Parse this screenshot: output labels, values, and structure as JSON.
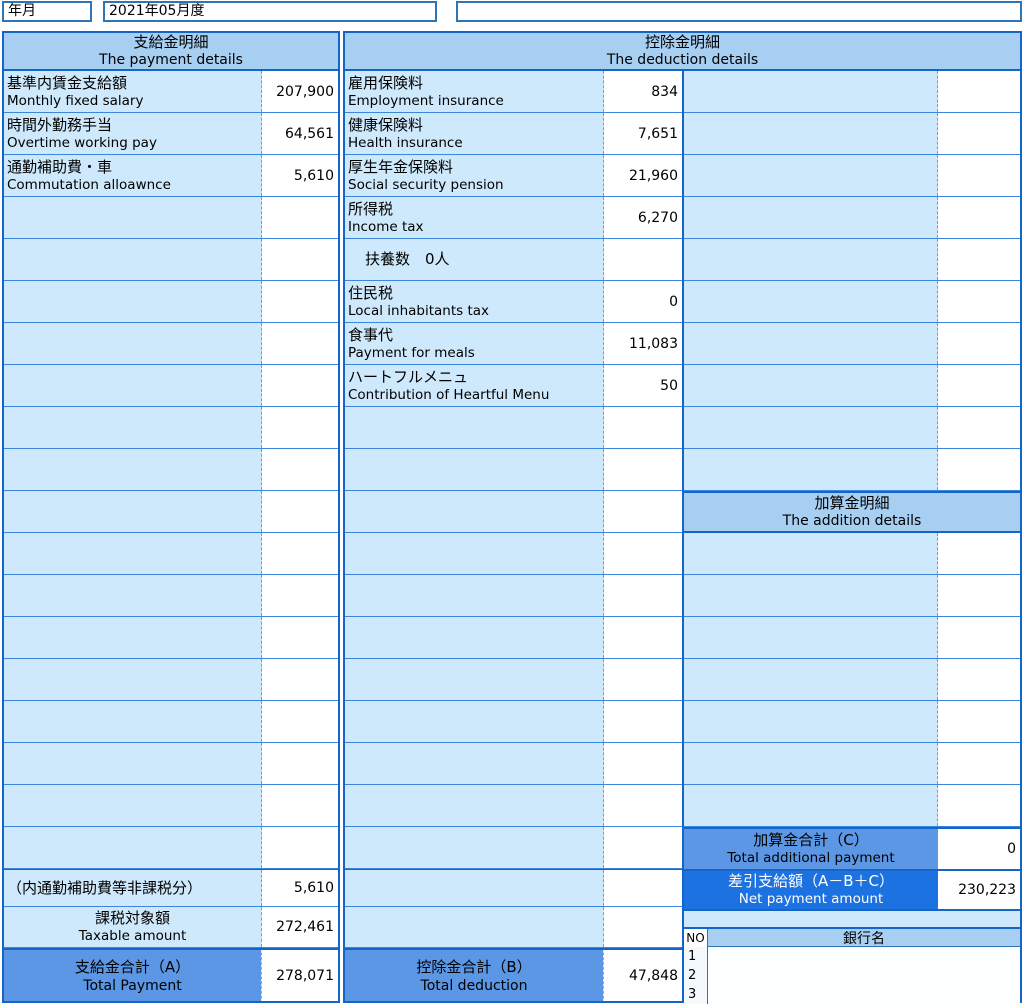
{
  "top": {
    "date_label": "年月",
    "date_value": "2021年05月度",
    "right_box_value": ""
  },
  "payment": {
    "header_jp": "支給金明細",
    "header_en": "The payment details",
    "rows": [
      {
        "jp": "基準内賃金支給額",
        "en": "Monthly fixed salary",
        "value": "207,900"
      },
      {
        "jp": "時間外勤務手当",
        "en": "Overtime working pay",
        "value": "64,561"
      },
      {
        "jp": "通勤補助費・車",
        "en": "Commutation alloawnce",
        "value": "5,610"
      },
      {},
      {},
      {},
      {},
      {},
      {},
      {},
      {},
      {},
      {},
      {},
      {},
      {},
      {},
      {},
      {},
      {
        "jp": "（内通勤補助費等非課税分）",
        "value": "5,610",
        "mode": "single"
      },
      {
        "jp": "課税対象額",
        "en": "Taxable amount",
        "value": "272,461",
        "mode": "center"
      }
    ],
    "total": {
      "jp": "支給金合計（A）",
      "en": "Total Payment",
      "value": "278,071"
    }
  },
  "deduction": {
    "header_jp": "控除金明細",
    "header_en": "The deduction details",
    "rows": [
      {
        "jp": "雇用保険料",
        "en": "Employment insurance",
        "value": "834"
      },
      {
        "jp": "健康保険料",
        "en": "Health insurance",
        "value": "7,651"
      },
      {
        "jp": "厚生年金保険料",
        "en": "Social security pension",
        "value": "21,960"
      },
      {
        "jp": "所得税",
        "en": "Income tax",
        "value": "6,270"
      },
      {
        "jp": "扶養数　0人",
        "mode": "single-indent"
      },
      {
        "jp": "住民税",
        "en": "Local inhabitants tax",
        "value": "0"
      },
      {
        "jp": "食事代",
        "en": "Payment for meals",
        "value": "11,083"
      },
      {
        "jp": "ハートフルメニュ",
        "en": "Contribution of  Heartful Menu",
        "value": "50"
      },
      {},
      {},
      {},
      {},
      {},
      {},
      {},
      {},
      {},
      {},
      {},
      {},
      {}
    ],
    "total": {
      "jp": "控除金合計（B）",
      "en": "Total deduction",
      "value": "47,848"
    }
  },
  "addition": {
    "header_jp": "加算金明細",
    "header_en": "The addition details",
    "empty_rows_before": 10,
    "empty_rows_after": 7,
    "total": {
      "jp": "加算金合計（C）",
      "en": "Total additional payment",
      "value": "0"
    },
    "net": {
      "jp": "差引支給額（A－B＋C）",
      "en": "Net payment amount",
      "value": "230,223"
    }
  },
  "bank": {
    "no_header": "NO",
    "name_header": "銀行名",
    "row_numbers": [
      "1",
      "2",
      "3"
    ]
  },
  "colors": {
    "dark_border": "#1565c8",
    "row_border": "#3b87dd",
    "header_bg": "#a6cff2",
    "label_bg": "#cfe9fc",
    "total_bg": "#5b97e4",
    "net_bg": "#1d72e2",
    "net_text": "#ffffff",
    "box_border": "#2e75b6"
  }
}
